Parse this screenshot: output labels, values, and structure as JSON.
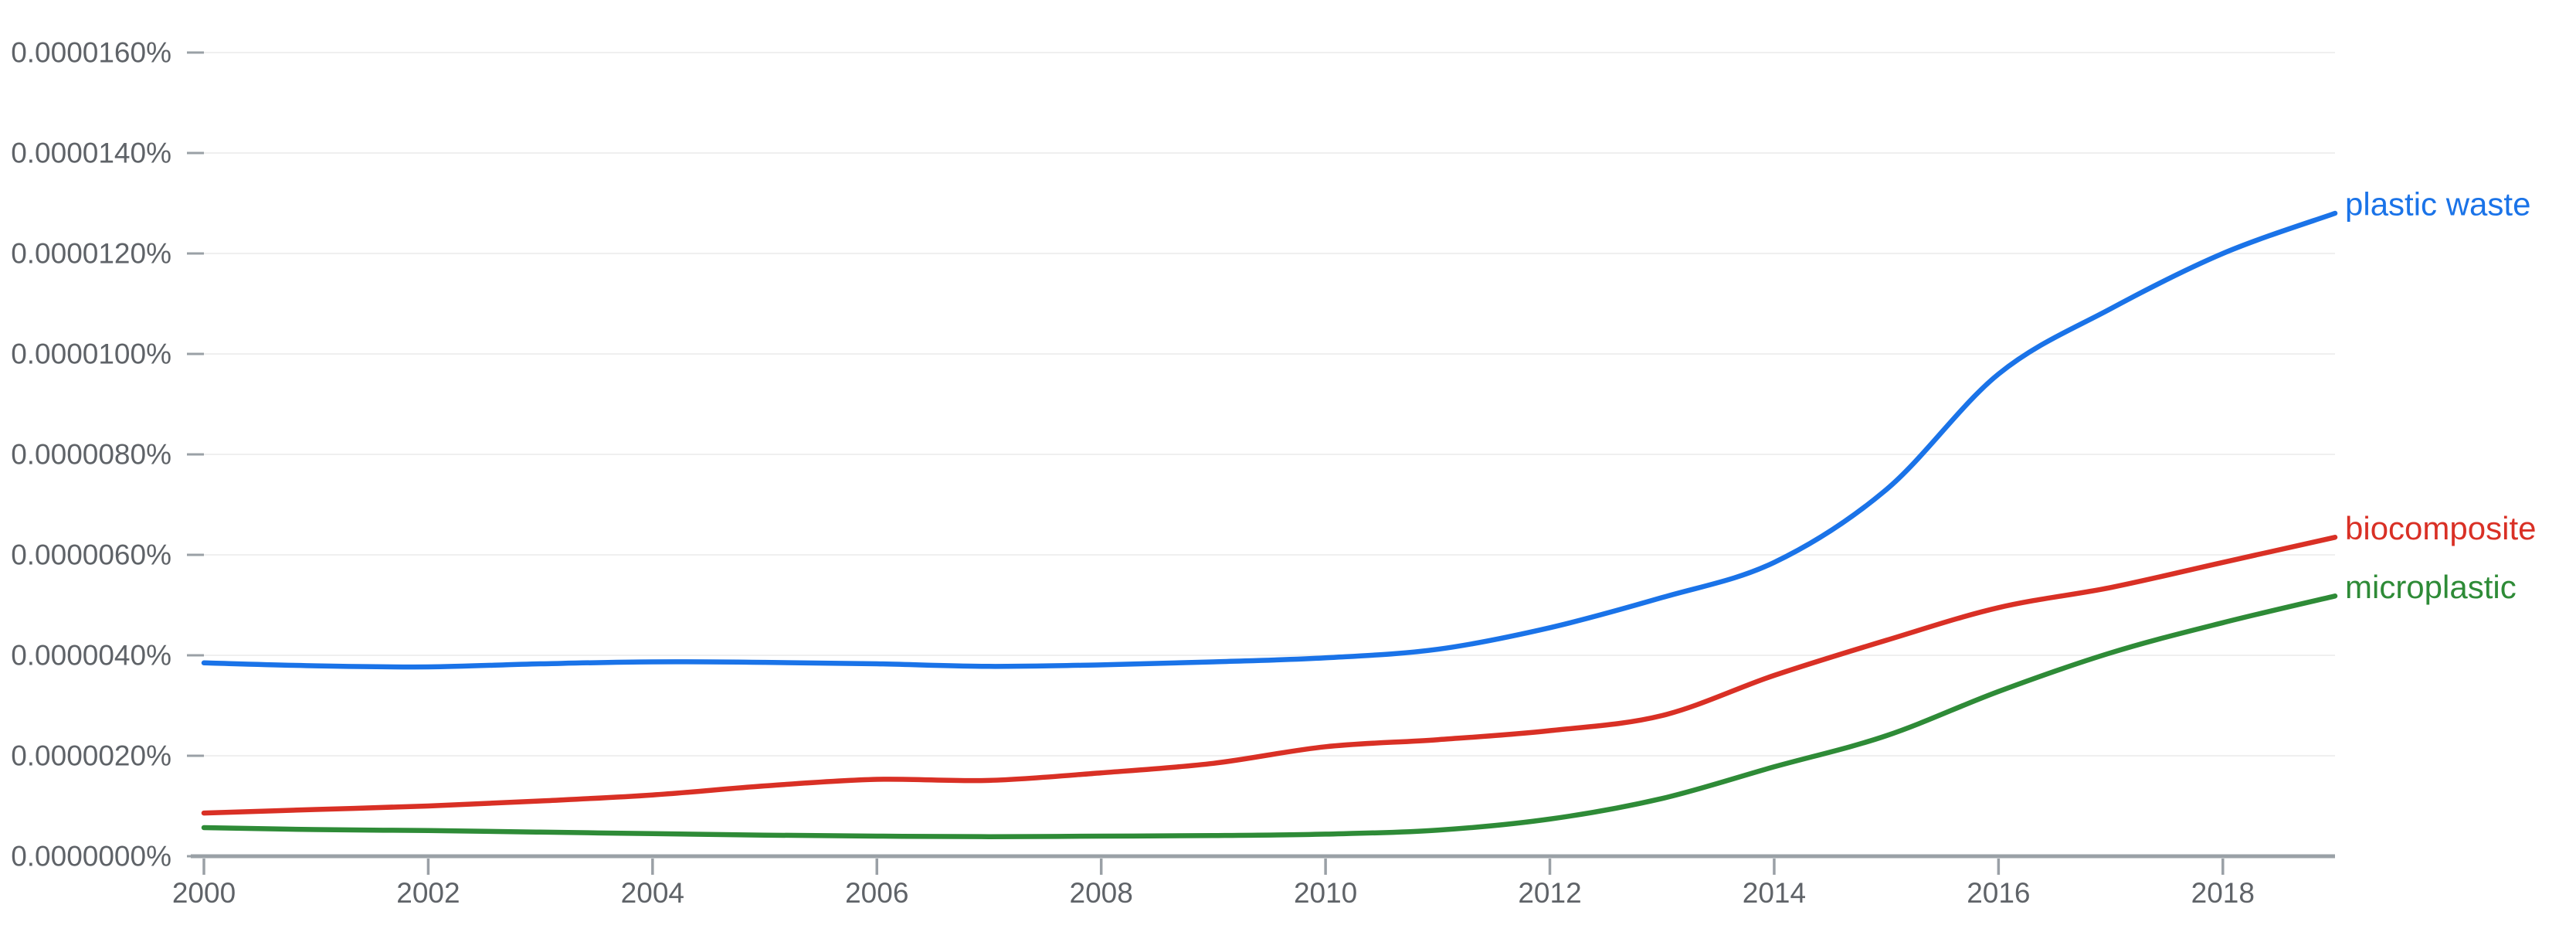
{
  "chart_data": {
    "type": "line",
    "x_label": "",
    "y_label": "",
    "x": [
      2000,
      2001,
      2002,
      2003,
      2004,
      2005,
      2006,
      2007,
      2008,
      2009,
      2010,
      2011,
      2012,
      2013,
      2014,
      2015,
      2016,
      2017,
      2018,
      2019
    ],
    "xlim": [
      2000,
      2019
    ],
    "ylim": [
      0,
      17.05
    ],
    "y_unit": "percent, values in units of 0.0000010%",
    "grid": true,
    "legend_position": "line-end-labels",
    "x_ticks": [
      {
        "value": 2000,
        "label": "2000"
      },
      {
        "value": 2002,
        "label": "2002"
      },
      {
        "value": 2004,
        "label": "2004"
      },
      {
        "value": 2006,
        "label": "2006"
      },
      {
        "value": 2008,
        "label": "2008"
      },
      {
        "value": 2010,
        "label": "2010"
      },
      {
        "value": 2012,
        "label": "2012"
      },
      {
        "value": 2014,
        "label": "2014"
      },
      {
        "value": 2016,
        "label": "2016"
      },
      {
        "value": 2018,
        "label": "2018"
      }
    ],
    "y_ticks": [
      {
        "value": 0,
        "label": "0.0000000%"
      },
      {
        "value": 2,
        "label": "0.0000020%"
      },
      {
        "value": 4,
        "label": "0.0000040%"
      },
      {
        "value": 6,
        "label": "0.0000060%"
      },
      {
        "value": 8,
        "label": "0.0000080%"
      },
      {
        "value": 10,
        "label": "0.0000100%"
      },
      {
        "value": 12,
        "label": "0.0000120%"
      },
      {
        "value": 14,
        "label": "0.0000140%"
      },
      {
        "value": 16,
        "label": "0.0000160%"
      }
    ],
    "series": [
      {
        "name": "plastic waste",
        "color": "#1a73e8",
        "values": [
          3.85,
          3.79,
          3.77,
          3.83,
          3.87,
          3.86,
          3.83,
          3.78,
          3.81,
          3.87,
          3.95,
          4.12,
          4.55,
          5.15,
          5.85,
          7.3,
          9.6,
          10.9,
          12.0,
          12.8
        ]
      },
      {
        "name": "biocomposite",
        "color": "#d93025",
        "values": [
          0.86,
          0.93,
          1.0,
          1.1,
          1.22,
          1.4,
          1.53,
          1.51,
          1.66,
          1.85,
          2.18,
          2.32,
          2.5,
          2.8,
          3.6,
          4.3,
          4.95,
          5.35,
          5.85,
          6.35
        ]
      },
      {
        "name": "microplastic",
        "color": "#2e8b37",
        "values": [
          0.57,
          0.53,
          0.51,
          0.48,
          0.45,
          0.42,
          0.4,
          0.39,
          0.4,
          0.41,
          0.44,
          0.52,
          0.74,
          1.15,
          1.78,
          2.4,
          3.28,
          4.05,
          4.65,
          5.18
        ]
      }
    ]
  },
  "styles": {
    "background": "#ffffff",
    "grid_color": "#efefef",
    "axis_color": "#9aa0a6",
    "tick_color": "#9aa0a6",
    "label_color": "#5f6368"
  }
}
